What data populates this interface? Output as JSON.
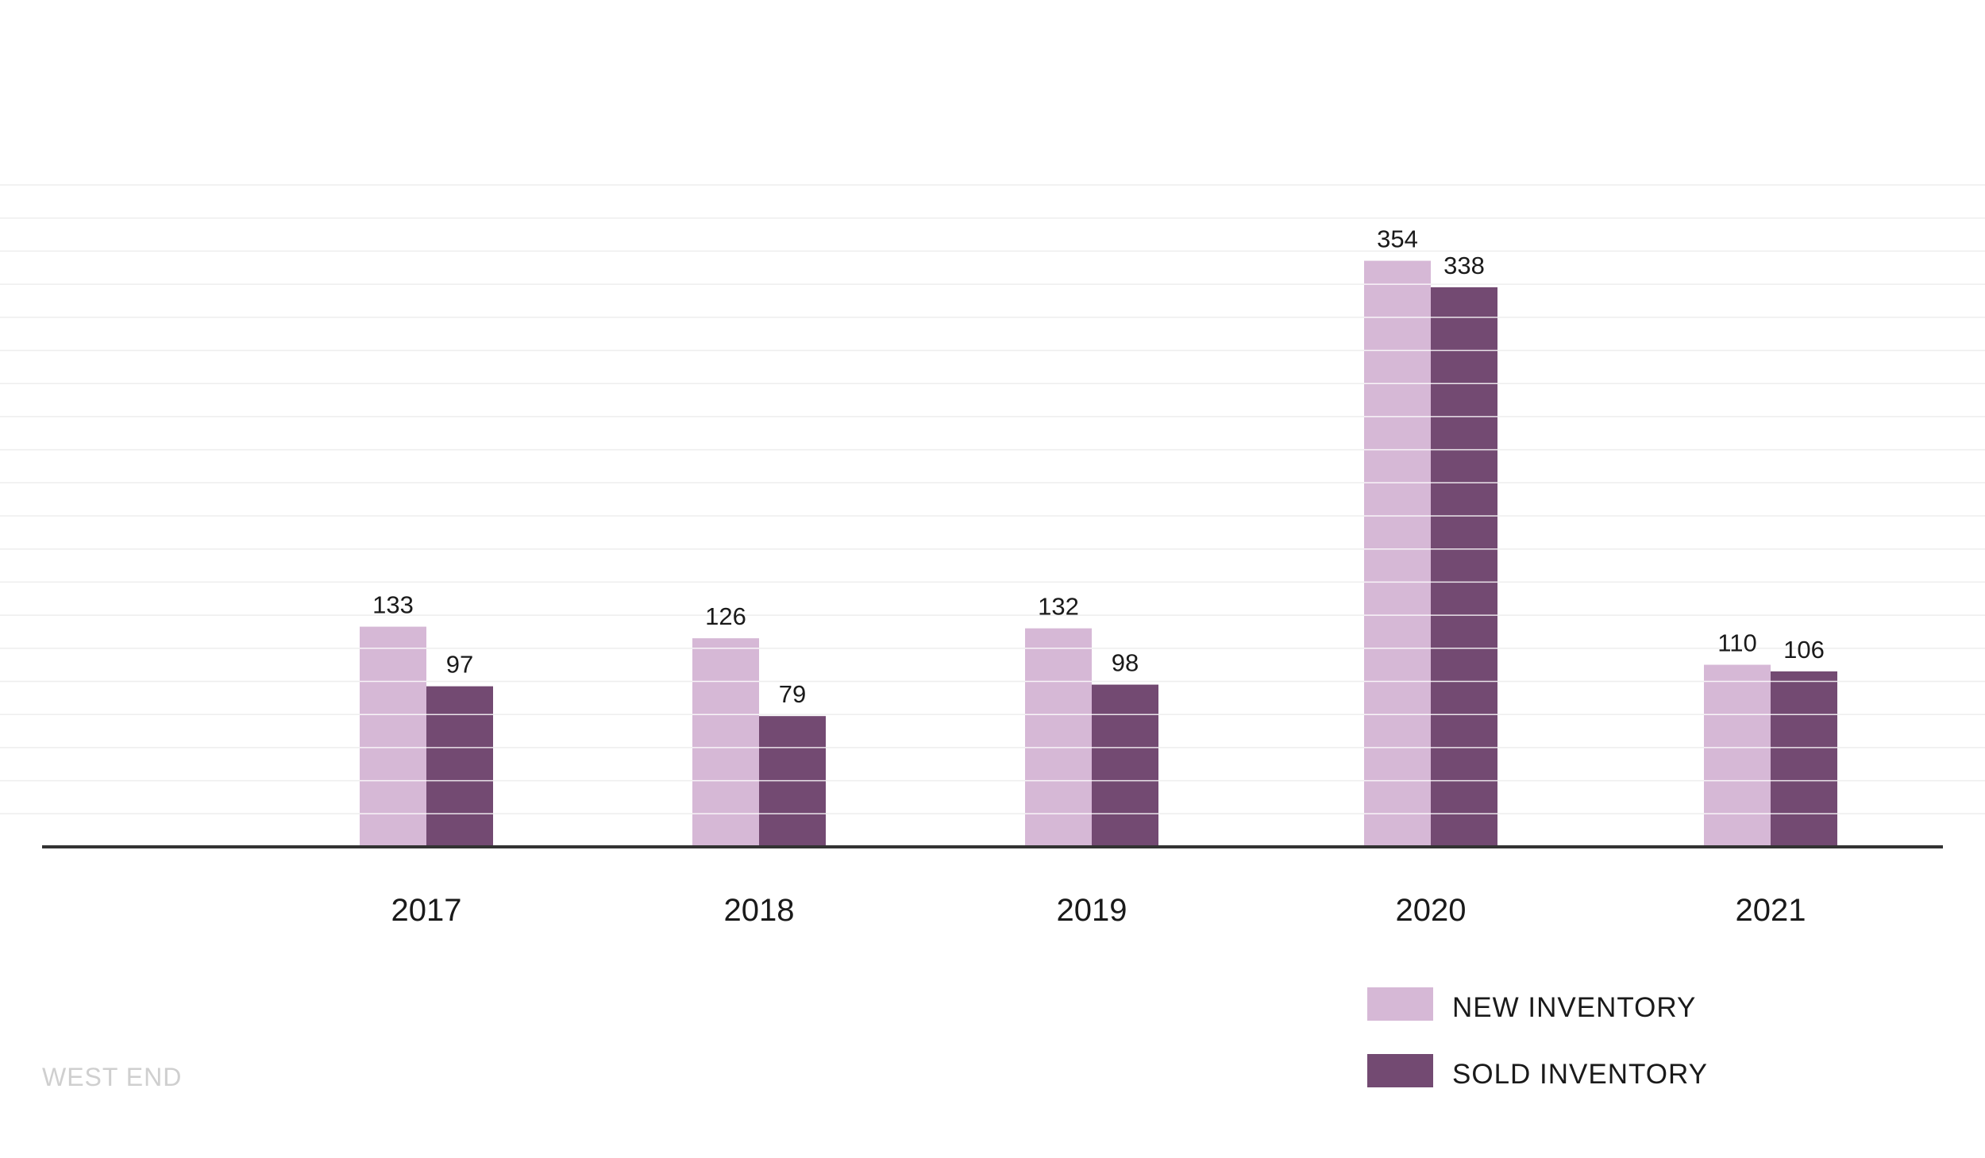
{
  "chart_data": {
    "type": "bar",
    "categories": [
      "2017",
      "2018",
      "2019",
      "2020",
      "2021"
    ],
    "series": [
      {
        "name": "NEW INVENTORY",
        "values": [
          133,
          126,
          132,
          354,
          110
        ],
        "color": "#d6b8d6"
      },
      {
        "name": "SOLD INVENTORY",
        "values": [
          97,
          79,
          98,
          338,
          106
        ],
        "color": "#734a72"
      }
    ],
    "title": "",
    "xlabel": "",
    "ylabel": "",
    "ylim": [
      0,
      400
    ],
    "grid": true,
    "legend_position": "bottom-right"
  },
  "footer": {
    "label": "WEST END"
  },
  "colors": {
    "axis": "#333333",
    "grid": "#eeeeee",
    "bar_separator": "#ffffff"
  }
}
